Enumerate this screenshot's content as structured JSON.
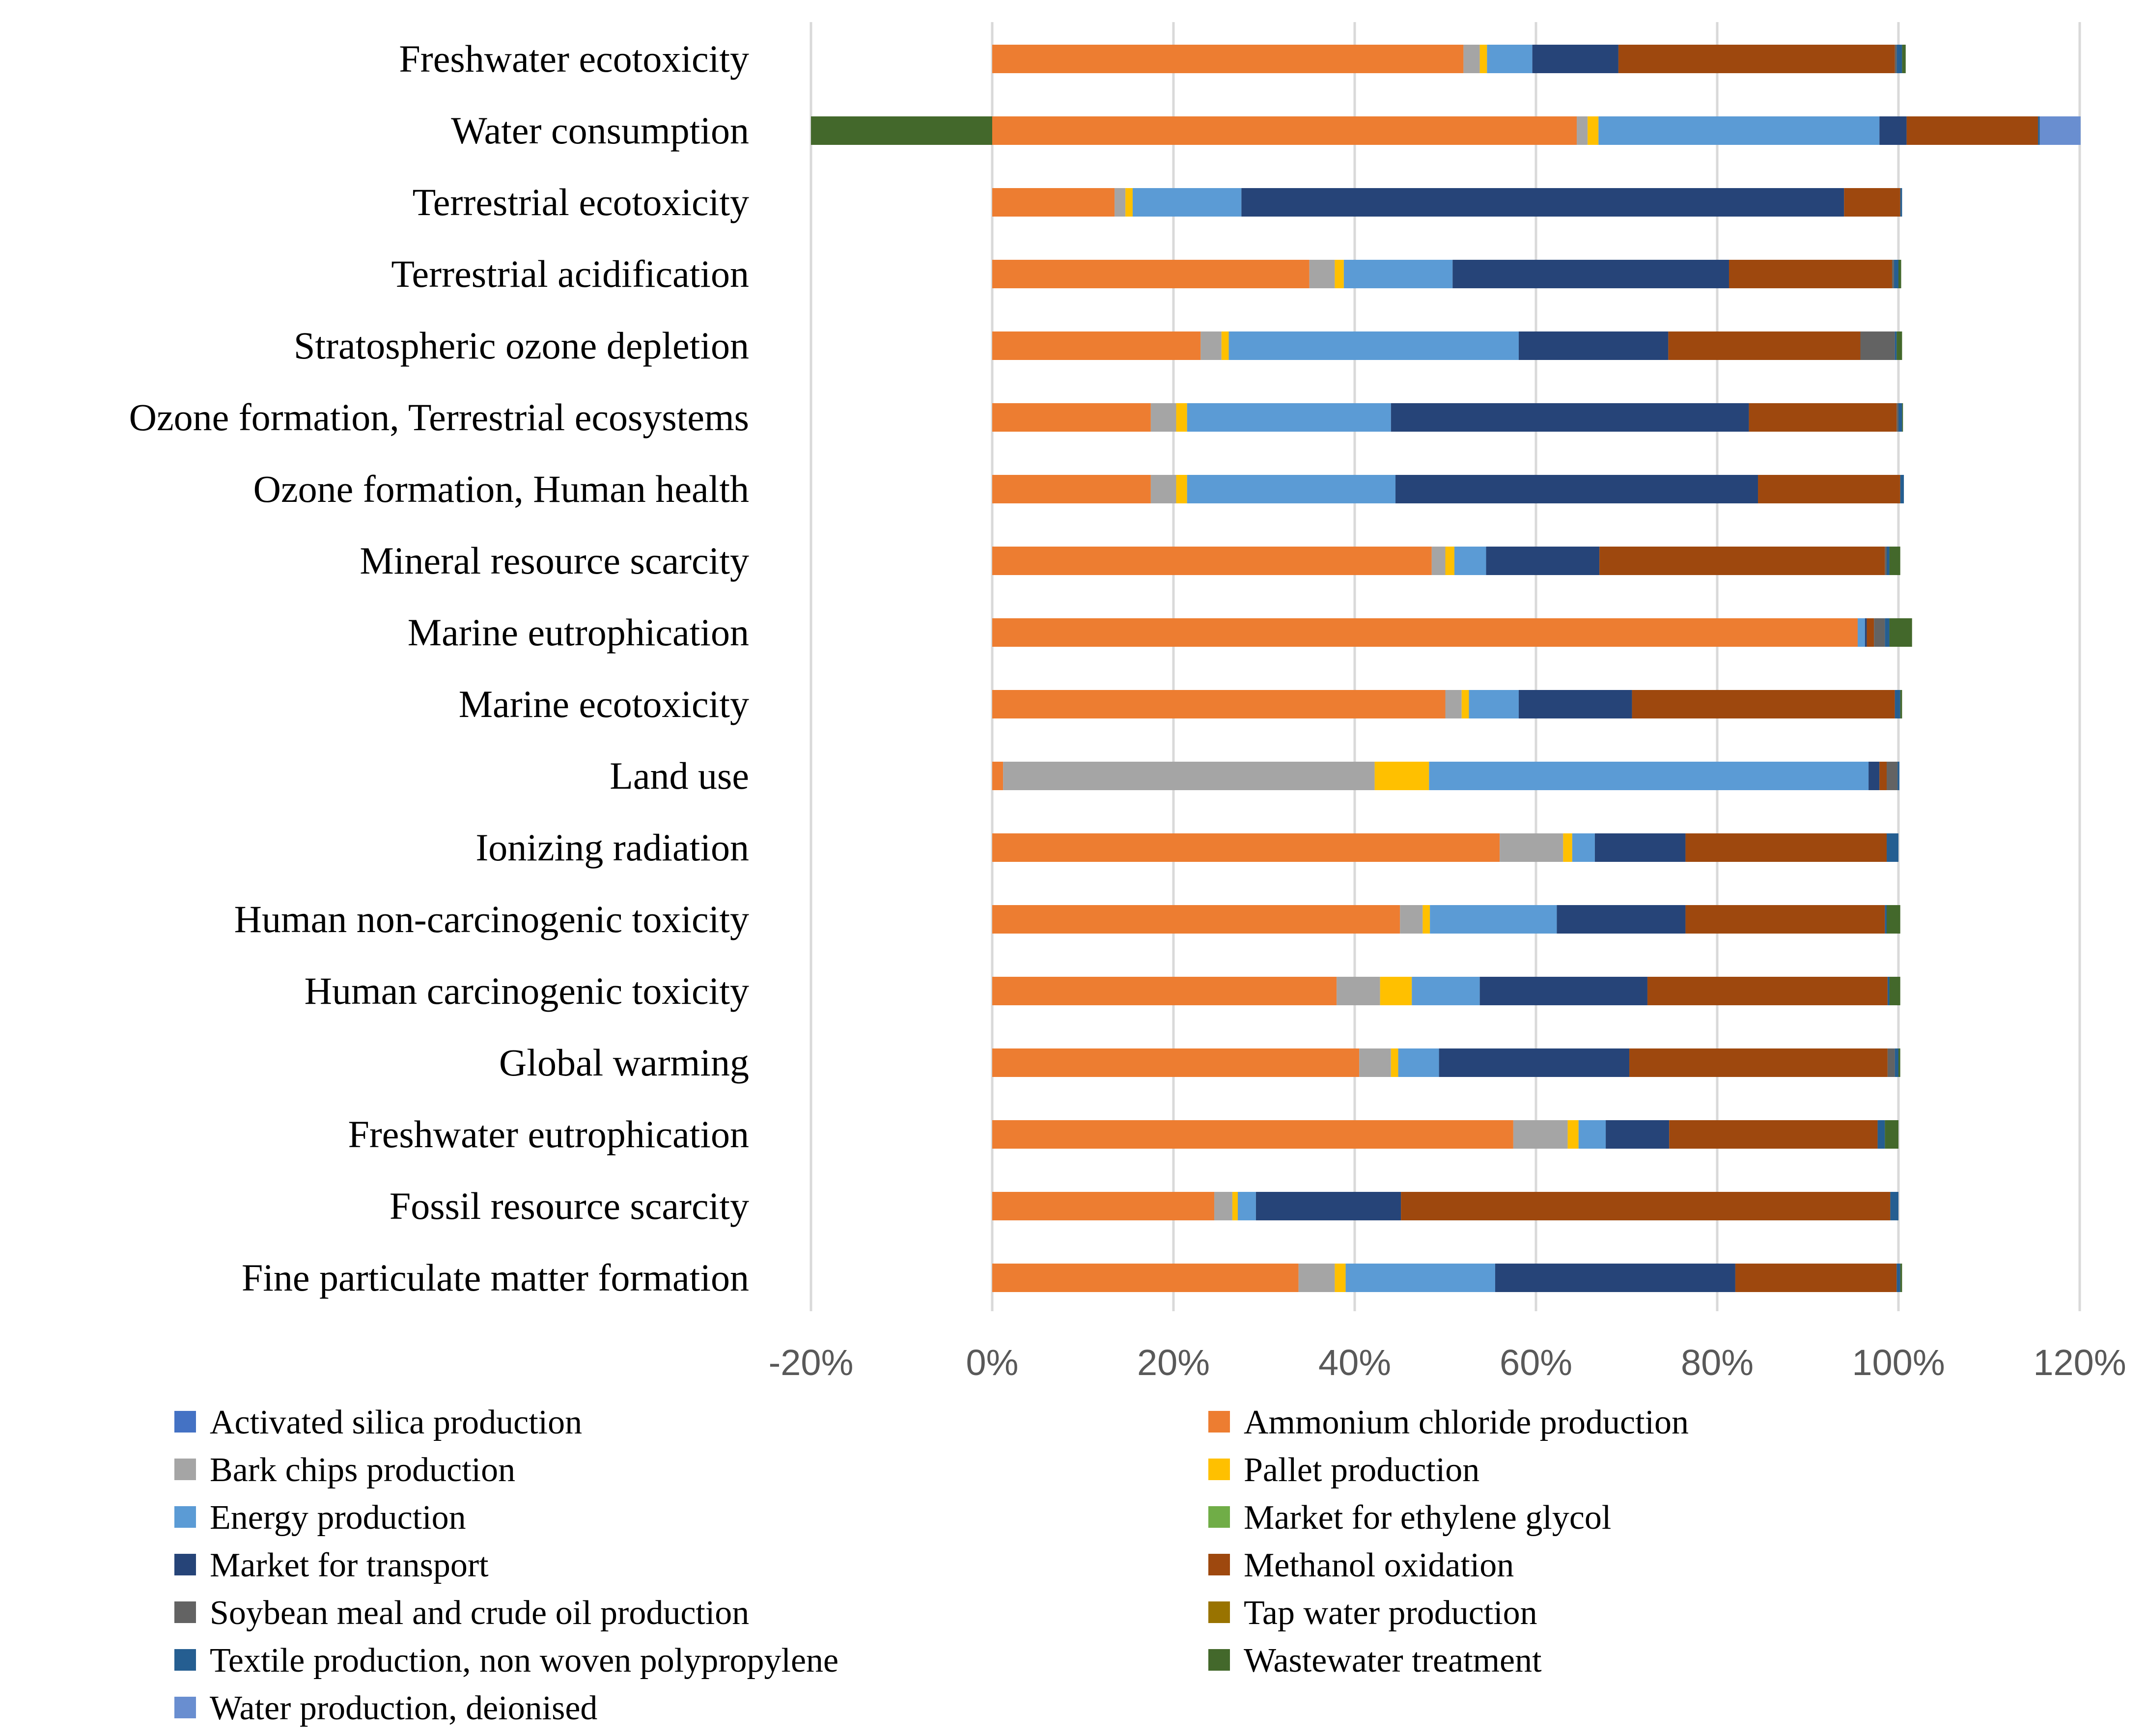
{
  "chart_data": {
    "type": "bar",
    "orientation": "horizontal",
    "stacked": true,
    "title": "",
    "xlabel": "",
    "ylabel": "",
    "xlim": [
      -0.2,
      1.2
    ],
    "x_ticks": [
      -0.2,
      0,
      0.2,
      0.4,
      0.6,
      0.8,
      1.0,
      1.2
    ],
    "x_tick_labels": [
      "-20%",
      "0%",
      "20%",
      "40%",
      "60%",
      "80%",
      "100%",
      "120%"
    ],
    "grid": true,
    "legend_position": "bottom",
    "categories": [
      "Freshwater ecotoxicity",
      "Water consumption",
      "Terrestrial ecotoxicity",
      "Terrestrial acidification",
      "Stratospheric ozone depletion",
      "Ozone formation, Terrestrial ecosystems",
      "Ozone formation, Human health",
      "Mineral resource scarcity",
      "Marine eutrophication",
      "Marine ecotoxicity",
      "Land use",
      "Ionizing radiation",
      "Human non-carcinogenic toxicity",
      "Human carcinogenic toxicity",
      "Global warming",
      "Freshwater eutrophication",
      "Fossil resource scarcity",
      "Fine particulate matter formation"
    ],
    "series": [
      {
        "name": "Activated silica production",
        "color": "#4472c4",
        "values": [
          0,
          0,
          0,
          0,
          0,
          0,
          0,
          0,
          0,
          0,
          0,
          0,
          0,
          0,
          0,
          0,
          0,
          0
        ]
      },
      {
        "name": "Ammonium chloride production",
        "color": "#ed7d31",
        "values": [
          0.52,
          0.645,
          0.135,
          0.35,
          0.23,
          0.175,
          0.175,
          0.485,
          0.955,
          0.5,
          0.012,
          0.56,
          0.45,
          0.38,
          0.405,
          0.575,
          0.245,
          0.338
        ]
      },
      {
        "name": "Bark chips production",
        "color": "#a5a5a5",
        "values": [
          0.018,
          0.012,
          0.012,
          0.028,
          0.023,
          0.028,
          0.028,
          0.015,
          0,
          0.018,
          0.41,
          0.07,
          0.025,
          0.048,
          0.035,
          0.06,
          0.02,
          0.04
        ]
      },
      {
        "name": "Pallet production",
        "color": "#ffc000",
        "values": [
          0.008,
          0.012,
          0.008,
          0.01,
          0.008,
          0.012,
          0.012,
          0.01,
          0,
          0.008,
          0.06,
          0.01,
          0.008,
          0.035,
          0.008,
          0.012,
          0.006,
          0.012
        ]
      },
      {
        "name": "Energy production",
        "color": "#5b9bd5",
        "values": [
          0.05,
          0.31,
          0.12,
          0.12,
          0.32,
          0.225,
          0.23,
          0.035,
          0.008,
          0.055,
          0.485,
          0.025,
          0.14,
          0.075,
          0.045,
          0.03,
          0.02,
          0.165
        ]
      },
      {
        "name": "Market for ethylene glycol",
        "color": "#70ad47",
        "values": [
          0,
          0,
          0,
          0,
          0,
          0,
          0,
          0,
          0,
          0,
          0,
          0,
          0,
          0,
          0,
          0,
          0,
          0
        ]
      },
      {
        "name": "Market for transport",
        "color": "#264478",
        "values": [
          0.095,
          0.03,
          0.665,
          0.305,
          0.165,
          0.395,
          0.4,
          0.125,
          0.002,
          0.125,
          0.012,
          0.1,
          0.142,
          0.185,
          0.21,
          0.07,
          0.16,
          0.265
        ]
      },
      {
        "name": "Methanol oxidation",
        "color": "#9e480e",
        "values": [
          0.305,
          0.145,
          0.062,
          0.18,
          0.212,
          0.163,
          0.157,
          0.315,
          0.008,
          0.29,
          0.008,
          0.222,
          0.22,
          0.265,
          0.285,
          0.23,
          0.54,
          0.178
        ]
      },
      {
        "name": "Soybean meal and crude oil production",
        "color": "#636363",
        "values": [
          0.002,
          0,
          0,
          0.002,
          0.038,
          0.002,
          0,
          0.002,
          0.012,
          0,
          0.012,
          0,
          0,
          0,
          0.008,
          0,
          0,
          0
        ]
      },
      {
        "name": "Tap water production",
        "color": "#997300",
        "values": [
          0,
          0,
          0,
          0,
          0,
          0,
          0,
          0,
          0,
          0,
          0,
          0,
          0,
          0,
          0,
          0,
          0,
          0
        ]
      },
      {
        "name": "Textile production, non woven polypropylene",
        "color": "#255e91",
        "values": [
          0.006,
          0.002,
          0.002,
          0.005,
          0.002,
          0.004,
          0.004,
          0.003,
          0.005,
          0.006,
          0.002,
          0.013,
          0.002,
          0.002,
          0.004,
          0.008,
          0.009,
          0.004
        ]
      },
      {
        "name": "Wastewater treatment",
        "color": "#43682b",
        "values": [
          0.004,
          -0.2,
          0,
          0.003,
          0.006,
          0.001,
          0,
          0.012,
          0.025,
          0.002,
          0,
          0,
          0.015,
          0.012,
          0.002,
          0.015,
          0,
          0.002
        ]
      },
      {
        "name": "Water production, deionised",
        "color": "#698ed0",
        "values": [
          0,
          0.045,
          0,
          0,
          0,
          0,
          0,
          0,
          0,
          0,
          0,
          0,
          0,
          0,
          0,
          0,
          0,
          0
        ]
      }
    ]
  }
}
